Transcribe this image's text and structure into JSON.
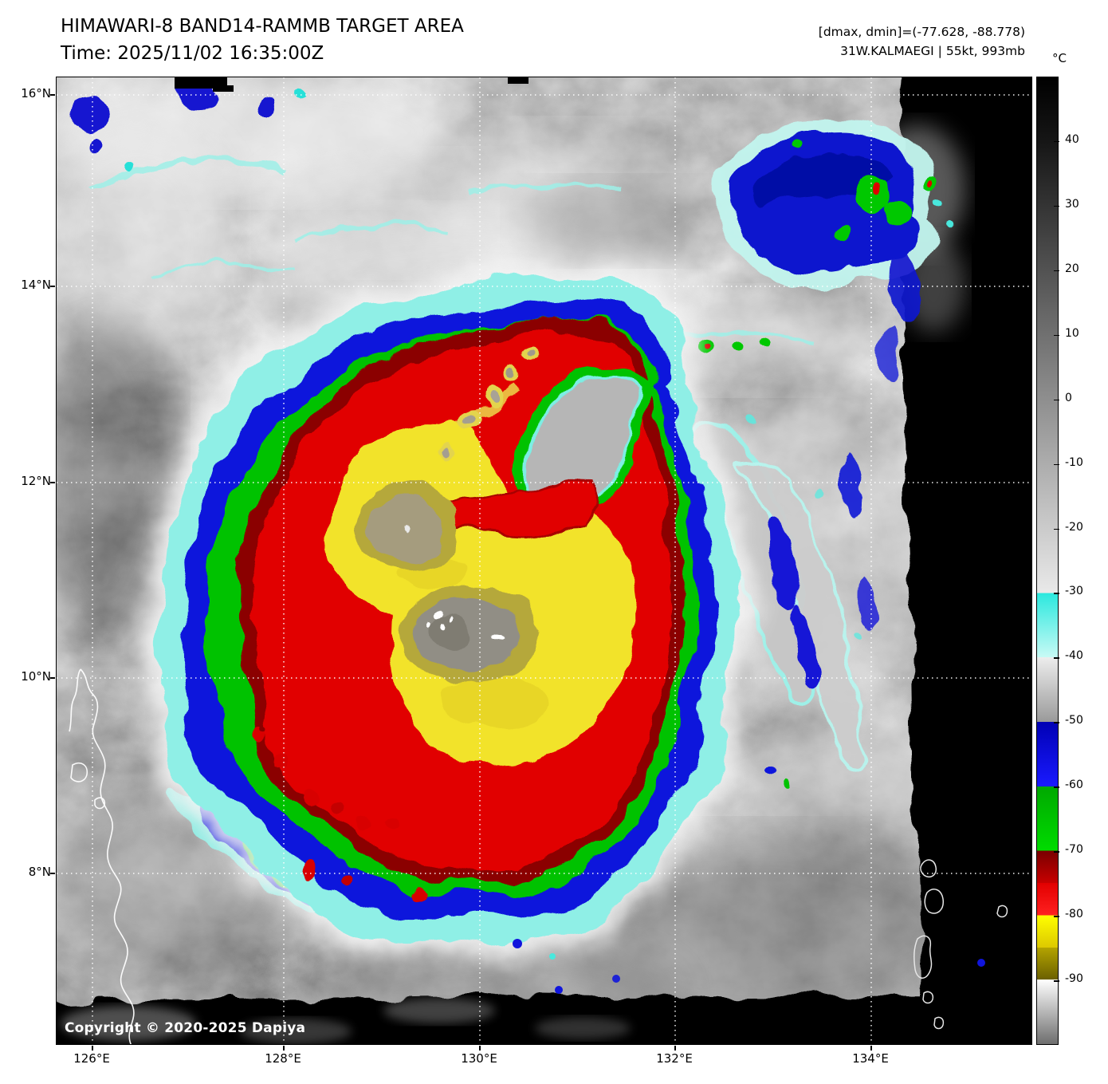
{
  "header": {
    "title": "HIMAWARI-8 BAND14-RAMMB TARGET AREA",
    "time": "Time: 2025/11/02 16:35:00Z",
    "dminmax": "[dmax, dmin]=(-77.628, -88.778)",
    "storm": "31W.KALMAEGI | 55kt, 993mb"
  },
  "axes": {
    "lat": [
      "16°N",
      "14°N",
      "12°N",
      "10°N",
      "8°N"
    ],
    "lon": [
      "126°E",
      "128°E",
      "130°E",
      "132°E",
      "134°E"
    ]
  },
  "footer": {
    "copyright": "Copyright © 2020-2025 Dapiya"
  },
  "chart_data": {
    "type": "heatmap",
    "title": "HIMAWARI-8 BAND14-RAMMB TARGET AREA",
    "time_utc": "2025/11/02 16:35:00Z",
    "satellite": "HIMAWARI-8",
    "band": "BAND14",
    "product": "RAMMB TARGET AREA",
    "storm": {
      "designation": "31W",
      "name": "KALMAEGI",
      "intensity_kt": 55,
      "pressure_mb": 993
    },
    "dmax_c": -77.628,
    "dmin_c": -88.778,
    "x_axis": {
      "ticks": [
        "126°E",
        "128°E",
        "130°E",
        "132°E",
        "134°E"
      ],
      "approx_range_deg_east": [
        125.6,
        135.6
      ]
    },
    "y_axis": {
      "ticks": [
        "8°N",
        "10°N",
        "12°N",
        "14°N",
        "16°N"
      ],
      "approx_range_deg_north": [
        6.3,
        16.2
      ]
    },
    "grid": "white dotted gridlines at each labeled latitude/longitude",
    "legend_position": "right",
    "colorbar": {
      "unit": "°C",
      "value_range": [
        50,
        -100
      ],
      "tick_values": [
        40,
        30,
        20,
        10,
        0,
        -10,
        -20,
        -30,
        -40,
        -50,
        -60,
        -70,
        -80,
        -90
      ],
      "segments": [
        {
          "from_c": 50,
          "to_c": 40,
          "color_start": "#000000",
          "color_end": "#161616"
        },
        {
          "from_c": 40,
          "to_c": -30,
          "color_start": "#161616",
          "color_end": "#e9e9e9"
        },
        {
          "from_c": -30,
          "to_c": -40,
          "color_start": "#2ae8de",
          "color_end": "#c8faf5"
        },
        {
          "from_c": -40,
          "to_c": -50,
          "color_start": "#ededed",
          "color_end": "#9a9a9a"
        },
        {
          "from_c": -50,
          "to_c": -60,
          "color_start": "#0000b4",
          "color_end": "#1a1aff"
        },
        {
          "from_c": -60,
          "to_c": -70,
          "color_start": "#00a800",
          "color_end": "#00dc00"
        },
        {
          "from_c": -70,
          "to_c": -75,
          "color_start": "#780000",
          "color_end": "#c80000"
        },
        {
          "from_c": -75,
          "to_c": -80,
          "color_start": "#e20000",
          "color_end": "#ff2020"
        },
        {
          "from_c": -80,
          "to_c": -85,
          "color_start": "#ffff00",
          "color_end": "#ddc900"
        },
        {
          "from_c": -85,
          "to_c": -90,
          "color_start": "#b4a400",
          "color_end": "#6b6000"
        },
        {
          "from_c": -90,
          "to_c": -100,
          "color_start": "#ffffff",
          "color_end": "#6e6e6e"
        }
      ]
    },
    "features": [
      "Tropical cyclone with cold convective canopy centered near 130.5°E 10.7°N",
      "Coldest cloud tops -80 to -90°C (yellow/olive) in two lobes around the center",
      "Red ring -70 to -80°C surrounded by green (-60 to -70°C) and blue (-50 to -60°C) bands",
      "Cyan fringe -30 to -40°C cirrus edge around the storm",
      "Dry slot of warmer gray cloud intruding from the northeast",
      "Outer rainbands to the southwest and east; cold cluster in upper-right corner",
      "Black no-data scan edge along the eastern boundary and bottom of the image",
      "Philippine coastline outlined in white at lower left"
    ]
  }
}
